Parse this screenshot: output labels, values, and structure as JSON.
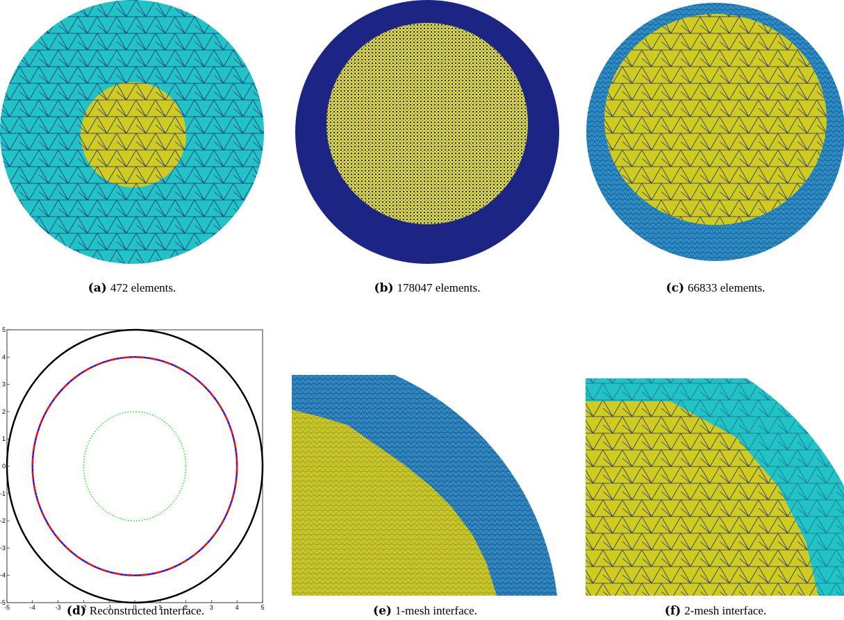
{
  "subfigures": [
    {
      "label": "(a)",
      "caption": "472 elements."
    },
    {
      "label": "(b)",
      "caption": "178047 elements."
    },
    {
      "label": "(c)",
      "caption": "66833 elements."
    },
    {
      "label": "(d)",
      "caption": "Reconstructed interface."
    },
    {
      "label": "(e)",
      "caption": "1-mesh interface."
    },
    {
      "label": "(f)",
      "caption": "2-mesh interface."
    }
  ],
  "plot": {
    "xlim": [
      -5,
      5
    ],
    "ylim": [
      -5,
      5
    ],
    "xticks": [
      -5,
      -4,
      -3,
      -2,
      -1,
      0,
      1,
      2,
      3,
      4,
      5
    ],
    "yticks": [
      -5,
      -4,
      -3,
      -2,
      -1,
      0,
      1,
      2,
      3,
      4,
      5
    ],
    "curves": [
      {
        "radius": 5,
        "color": "#000000",
        "style": "solid",
        "width": 2.5
      },
      {
        "radius": 4,
        "color": "#1a1aff",
        "style": "solid",
        "width": 2.5
      },
      {
        "radius": 4,
        "color": "#ee1111",
        "style": "dashdot",
        "width": 2.5
      },
      {
        "radius": 2,
        "color": "#22dd22",
        "style": "dotted",
        "width": 1.5
      }
    ]
  }
}
